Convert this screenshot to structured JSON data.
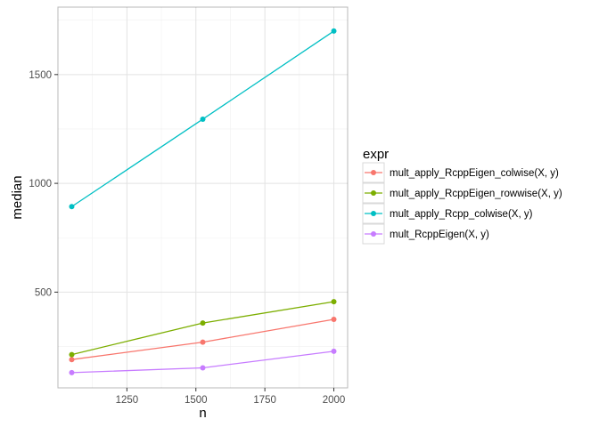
{
  "chart_data": {
    "type": "line",
    "xlabel": "n",
    "ylabel": "median",
    "xlim": [
      1000,
      2050
    ],
    "ylim": [
      60,
      1810
    ],
    "x_ticks": [
      1250,
      1500,
      1750,
      2000
    ],
    "x_tick_labels": [
      "1250",
      "1500",
      "1750",
      "2000"
    ],
    "y_ticks": [
      500,
      1000,
      1500
    ],
    "y_tick_labels": [
      "500",
      "1000",
      "1500"
    ],
    "grid": true,
    "legend_title": "expr",
    "legend_position": "right",
    "x": [
      1050,
      1525,
      2000
    ],
    "series": [
      {
        "name": "mult_apply_RcppEigen_colwise(X, y)",
        "color": "#F8766D",
        "values": [
          190,
          270,
          375
        ]
      },
      {
        "name": "mult_apply_RcppEigen_rowwise(X, y)",
        "color": "#7CAE00",
        "values": [
          213,
          358,
          456
        ]
      },
      {
        "name": "mult_apply_Rcpp_colwise(X, y)",
        "color": "#00BFC4",
        "values": [
          893,
          1295,
          1700
        ]
      },
      {
        "name": "mult_RcppEigen(X, y)",
        "color": "#C77CFF",
        "values": [
          130,
          152,
          228
        ]
      }
    ]
  }
}
